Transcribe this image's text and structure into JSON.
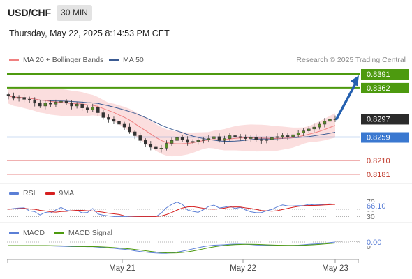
{
  "header": {
    "symbol": "USD/CHF",
    "timeframe": "30 MIN",
    "datetime": "Thursday, May 22, 2025 8:14:53 PM CET"
  },
  "legend": {
    "ma20_label": "MA 20 + Bollinger Bands",
    "ma50_label": "MA 50",
    "credit": "Research © 2025 Trading Central"
  },
  "colors": {
    "ma20": "#f08080",
    "ma50": "#3b5b92",
    "bands": "#f9d3d3",
    "resistance": "#4d9a0f",
    "pivot": "#3a78d0",
    "support": "#e06060",
    "candle": "#5a8a2a",
    "arrow": "#2460b0",
    "rsi": "#5b7fd6",
    "rsi_ma": "#d62020",
    "macd": "#5b7fd6",
    "macd_signal": "#4d9a0f",
    "last_price": "#2b2b2b"
  },
  "levels": [
    {
      "value": 0.8391,
      "label": "0.8391",
      "kind": "resistance"
    },
    {
      "value": 0.8362,
      "label": "0.8362",
      "kind": "resistance"
    },
    {
      "value": 0.8297,
      "label": "0.8297",
      "kind": "last"
    },
    {
      "value": 0.8259,
      "label": "0.8259",
      "kind": "pivot"
    },
    {
      "value": 0.821,
      "label": "0.8210",
      "kind": "support"
    },
    {
      "value": 0.8181,
      "label": "0.8181",
      "kind": "support"
    }
  ],
  "rsi": {
    "label": "RSI",
    "ma_label": "9MA",
    "value_label": "66.10",
    "ticks": [
      "70",
      "50",
      "30"
    ]
  },
  "macd": {
    "label": "MACD",
    "signal_label": "MACD Signal",
    "value_label": "0.00",
    "tick": "0"
  },
  "chart_data": {
    "type": "candlestick",
    "x_labels": [
      "May 21",
      "May 22",
      "May 23"
    ],
    "price_range": [
      0.817,
      0.842
    ],
    "candles_close": [
      0.8345,
      0.834,
      0.8342,
      0.8338,
      0.8336,
      0.833,
      0.8324,
      0.833,
      0.8328,
      0.8332,
      0.8334,
      0.833,
      0.8324,
      0.8328,
      0.832,
      0.8316,
      0.8322,
      0.831,
      0.83,
      0.8296,
      0.8292,
      0.8286,
      0.828,
      0.827,
      0.8262,
      0.8252,
      0.8244,
      0.8238,
      0.8234,
      0.8236,
      0.8246,
      0.8252,
      0.8258,
      0.8254,
      0.8248,
      0.825,
      0.8252,
      0.8254,
      0.8256,
      0.826,
      0.8252,
      0.8256,
      0.8262,
      0.826,
      0.8258,
      0.8256,
      0.8258,
      0.8254,
      0.8252,
      0.8254,
      0.8258,
      0.826,
      0.8262,
      0.826,
      0.8264,
      0.8268,
      0.8272,
      0.8276,
      0.828,
      0.8286,
      0.8292,
      0.8296,
      0.8297
    ],
    "arrow": {
      "from": 0.8297,
      "to": 0.8391
    }
  }
}
